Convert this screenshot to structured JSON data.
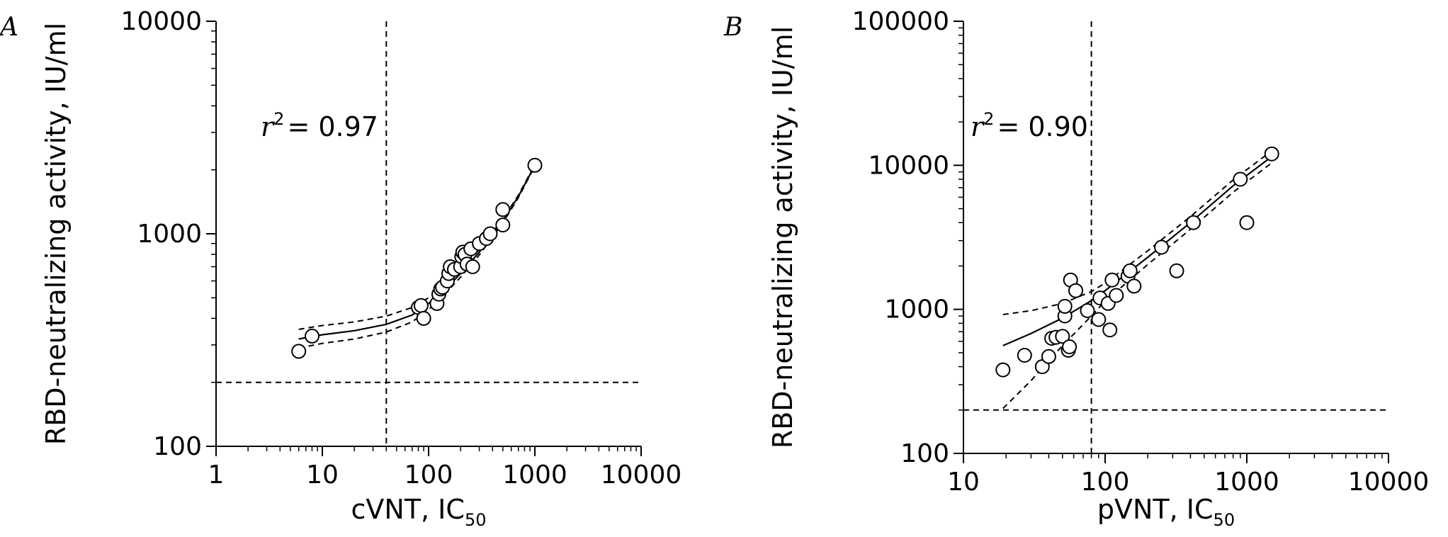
{
  "chart_data": [
    {
      "panel_label": "A",
      "type": "scatter",
      "xlabel": "cVNT, IC",
      "xlabel_sub": "50",
      "ylabel": "RBD-neutralizing activity, IU/ml",
      "x_scale": "log",
      "y_scale": "log",
      "xlim": [
        1,
        10000
      ],
      "ylim": [
        100,
        10000
      ],
      "x_ticks": [
        1,
        10,
        100,
        1000,
        10000
      ],
      "x_tick_labels": [
        "1",
        "10",
        "100",
        "1000",
        "10000"
      ],
      "y_ticks": [
        100,
        1000,
        10000
      ],
      "y_tick_labels": [
        "100",
        "1000",
        "10000"
      ],
      "annotation": {
        "symbol": "r",
        "superscript": "2",
        "text": "= 0.97"
      },
      "threshold_x": 40,
      "threshold_y": 200,
      "points": [
        [
          6,
          280
        ],
        [
          8,
          330
        ],
        [
          80,
          450
        ],
        [
          85,
          460
        ],
        [
          90,
          400
        ],
        [
          120,
          470
        ],
        [
          125,
          520
        ],
        [
          130,
          550
        ],
        [
          135,
          560
        ],
        [
          150,
          600
        ],
        [
          155,
          650
        ],
        [
          160,
          700
        ],
        [
          175,
          680
        ],
        [
          200,
          700
        ],
        [
          205,
          780
        ],
        [
          210,
          820
        ],
        [
          220,
          800
        ],
        [
          230,
          720
        ],
        [
          250,
          850
        ],
        [
          260,
          700
        ],
        [
          300,
          900
        ],
        [
          350,
          950
        ],
        [
          380,
          1000
        ],
        [
          500,
          1100
        ],
        [
          500,
          1300
        ],
        [
          1000,
          2100
        ]
      ],
      "fit": [
        [
          6,
          320
        ],
        [
          10,
          335
        ],
        [
          20,
          350
        ],
        [
          40,
          375
        ],
        [
          70,
          415
        ],
        [
          100,
          470
        ],
        [
          150,
          560
        ],
        [
          200,
          650
        ],
        [
          300,
          820
        ],
        [
          500,
          1150
        ],
        [
          700,
          1500
        ],
        [
          1000,
          2100
        ]
      ],
      "ci_upper": [
        [
          6,
          355
        ],
        [
          10,
          370
        ],
        [
          20,
          385
        ],
        [
          40,
          410
        ],
        [
          70,
          450
        ],
        [
          100,
          500
        ],
        [
          150,
          585
        ],
        [
          200,
          675
        ],
        [
          300,
          845
        ],
        [
          500,
          1175
        ],
        [
          700,
          1520
        ],
        [
          1000,
          2120
        ]
      ],
      "ci_lower": [
        [
          6,
          290
        ],
        [
          10,
          305
        ],
        [
          20,
          320
        ],
        [
          40,
          345
        ],
        [
          70,
          385
        ],
        [
          100,
          440
        ],
        [
          150,
          535
        ],
        [
          200,
          625
        ],
        [
          300,
          795
        ],
        [
          500,
          1125
        ],
        [
          700,
          1480
        ],
        [
          1000,
          2080
        ]
      ]
    },
    {
      "panel_label": "B",
      "type": "scatter",
      "xlabel": "pVNT, IC",
      "xlabel_sub": "50",
      "ylabel": "RBD-neutralizing activity, IU/ml",
      "x_scale": "log",
      "y_scale": "log",
      "xlim": [
        10,
        10000
      ],
      "ylim": [
        100,
        100000
      ],
      "x_ticks": [
        10,
        100,
        1000,
        10000
      ],
      "x_tick_labels": [
        "10",
        "100",
        "1000",
        "10000"
      ],
      "y_ticks": [
        100,
        1000,
        10000,
        100000
      ],
      "y_tick_labels": [
        "100",
        "1000",
        "10000",
        "100000"
      ],
      "annotation": {
        "symbol": "r",
        "superscript": "2",
        "text": "= 0.90"
      },
      "threshold_x": 80,
      "threshold_y": 200,
      "points": [
        [
          19,
          380
        ],
        [
          27,
          480
        ],
        [
          36,
          400
        ],
        [
          40,
          470
        ],
        [
          42,
          630
        ],
        [
          45,
          640
        ],
        [
          50,
          650
        ],
        [
          52,
          900
        ],
        [
          52,
          1050
        ],
        [
          55,
          520
        ],
        [
          56,
          550
        ],
        [
          57,
          1600
        ],
        [
          62,
          1350
        ],
        [
          75,
          980
        ],
        [
          90,
          850
        ],
        [
          92,
          1200
        ],
        [
          105,
          1100
        ],
        [
          108,
          720
        ],
        [
          112,
          1600
        ],
        [
          120,
          1250
        ],
        [
          145,
          1700
        ],
        [
          150,
          1850
        ],
        [
          160,
          1450
        ],
        [
          250,
          2700
        ],
        [
          320,
          1850
        ],
        [
          420,
          4000
        ],
        [
          900,
          8000
        ],
        [
          1000,
          4000
        ],
        [
          1500,
          12000
        ]
      ],
      "fit": [
        [
          19,
          560
        ],
        [
          30,
          680
        ],
        [
          50,
          870
        ],
        [
          80,
          1150
        ],
        [
          100,
          1350
        ],
        [
          200,
          2300
        ],
        [
          400,
          4000
        ],
        [
          800,
          7200
        ],
        [
          1500,
          11500
        ]
      ],
      "ci_upper": [
        [
          19,
          920
        ],
        [
          30,
          980
        ],
        [
          50,
          1100
        ],
        [
          80,
          1330
        ],
        [
          100,
          1520
        ],
        [
          200,
          2550
        ],
        [
          400,
          4400
        ],
        [
          800,
          7900
        ],
        [
          1500,
          12600
        ]
      ],
      "ci_lower": [
        [
          19,
          205
        ],
        [
          30,
          320
        ],
        [
          50,
          560
        ],
        [
          80,
          900
        ],
        [
          100,
          1140
        ],
        [
          200,
          2050
        ],
        [
          400,
          3600
        ],
        [
          800,
          6500
        ],
        [
          1500,
          10400
        ]
      ]
    }
  ]
}
